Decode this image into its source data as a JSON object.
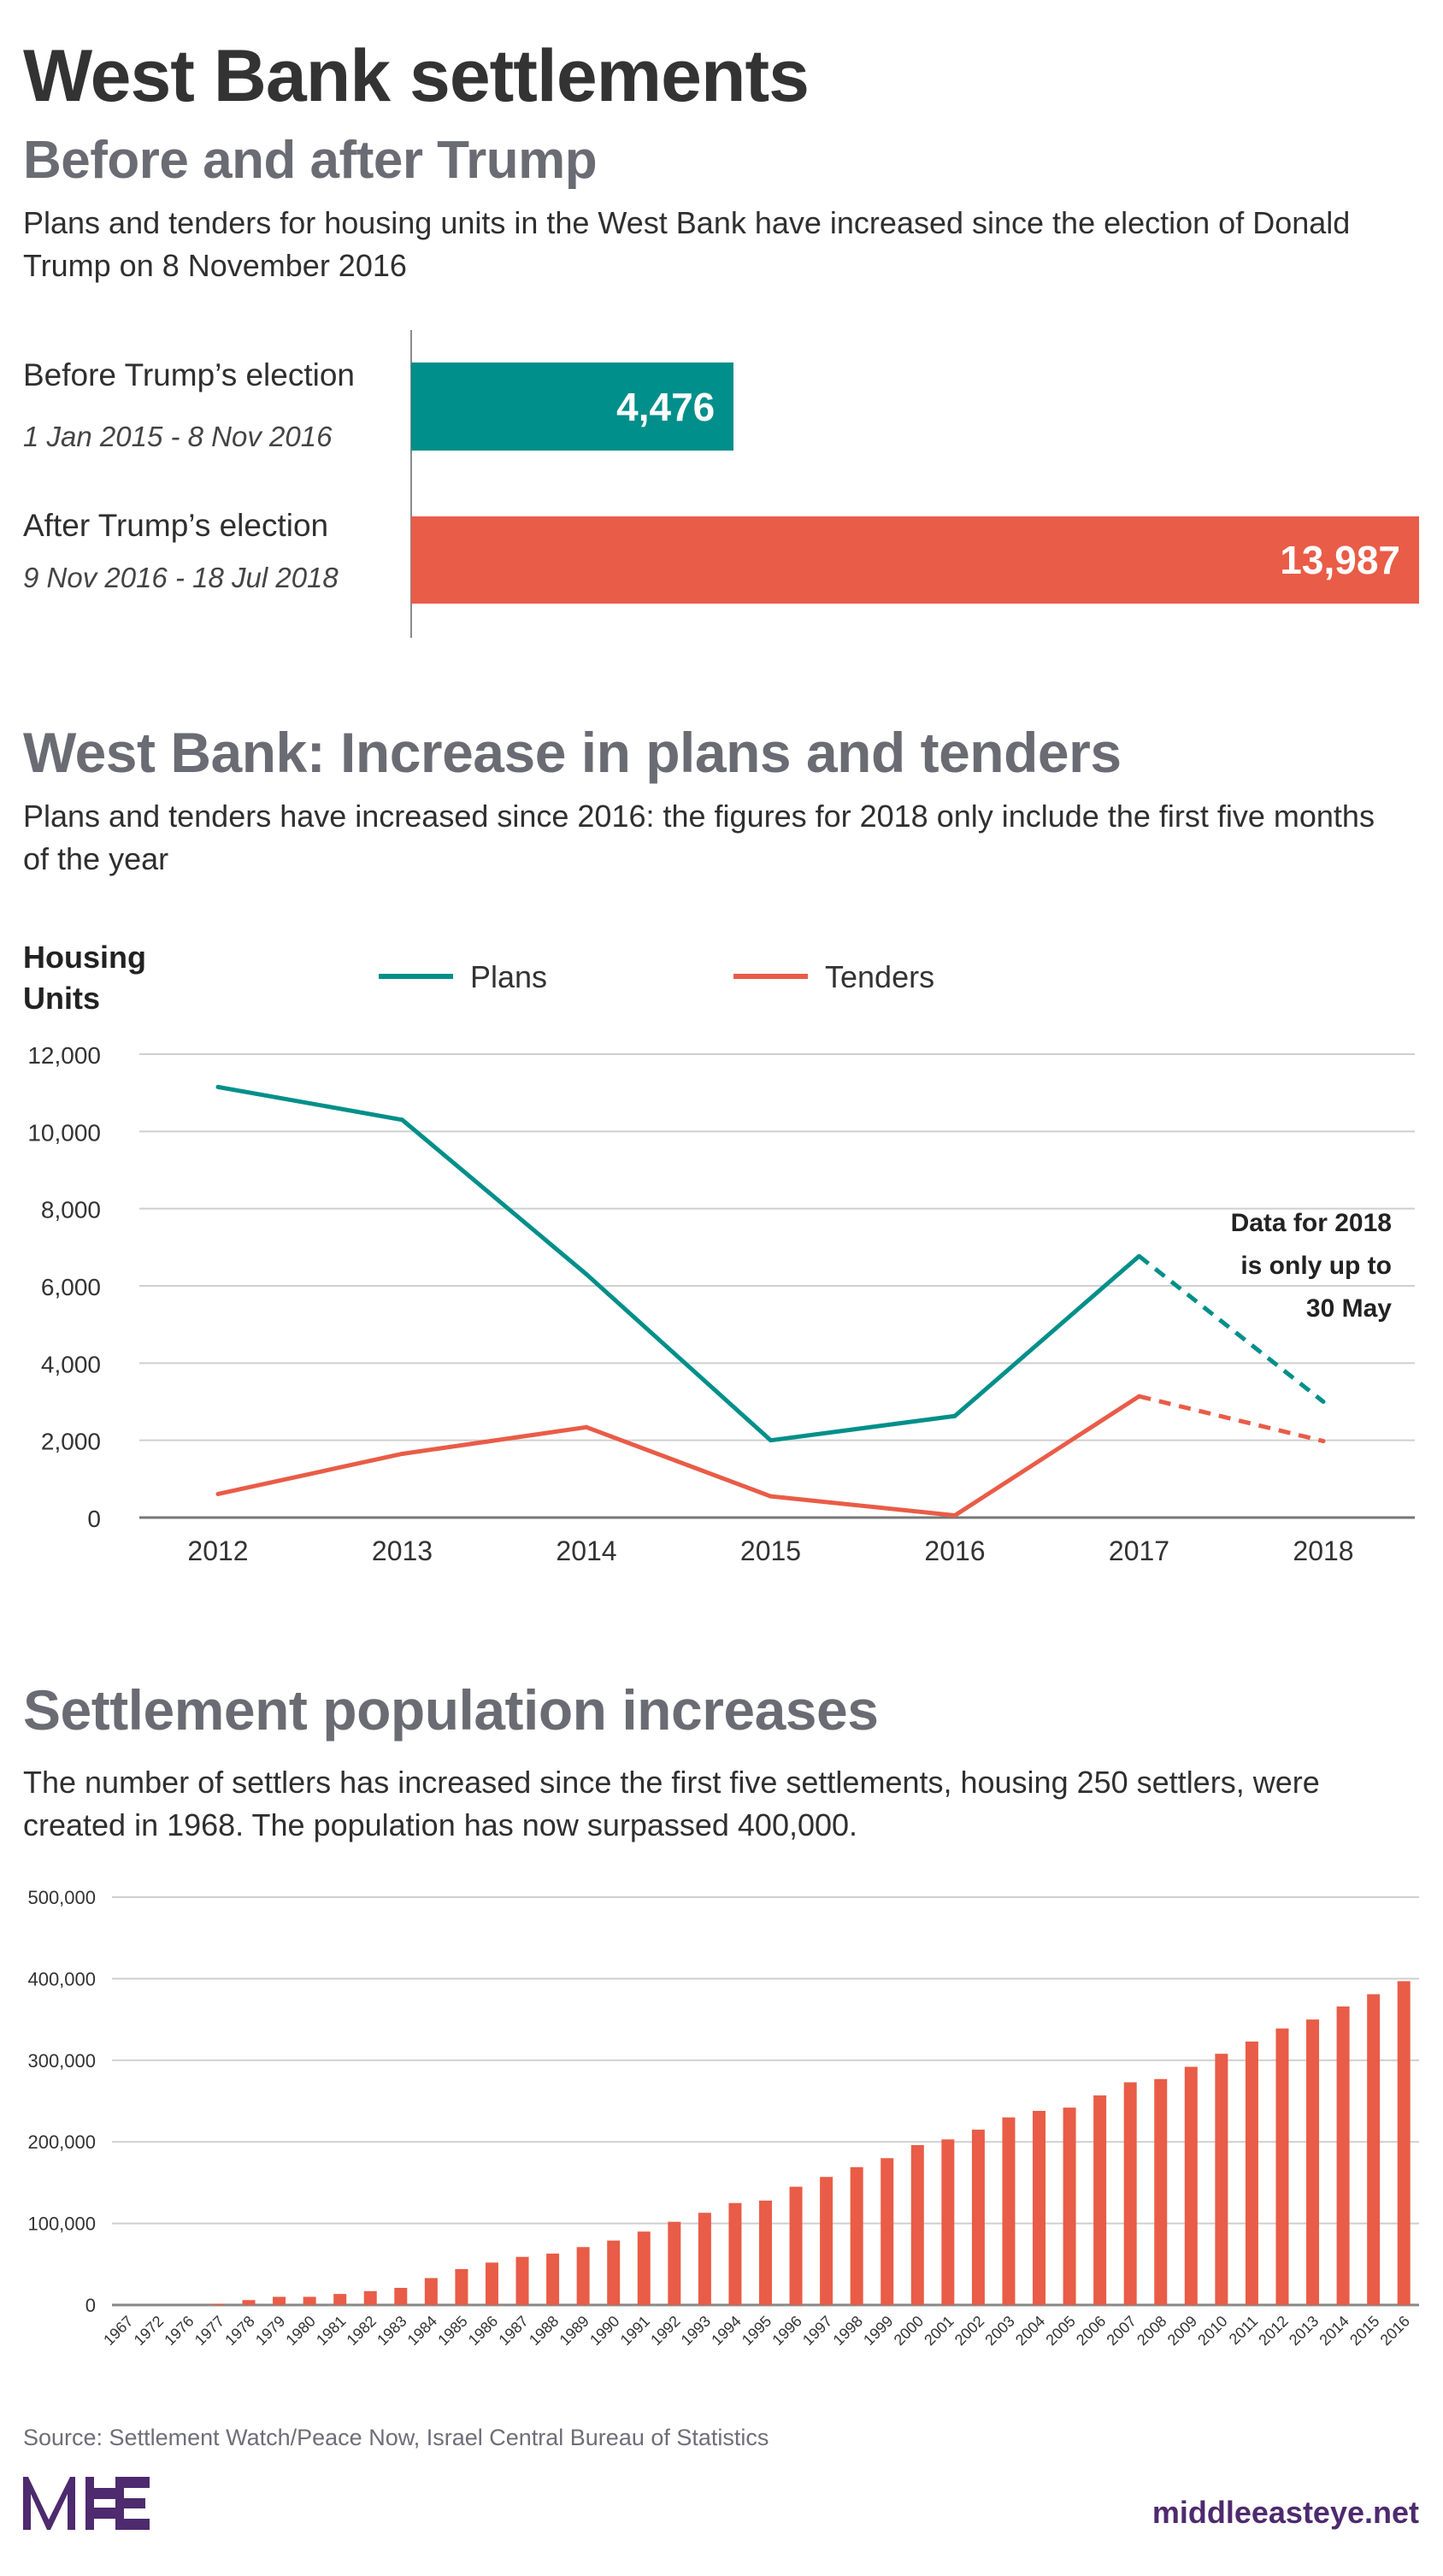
{
  "header": {
    "title": "West Bank settlements",
    "subtitle": "Before and after Trump",
    "description": "Plans and tenders for housing units in the West Bank have increased since the election of Donald Trump on 8 November 2016"
  },
  "comparison": {
    "items": [
      {
        "label": "Before Trump’s election",
        "period": "1 Jan 2015 - 8 Nov 2016",
        "value": 4476,
        "value_label": "4,476",
        "color": "#008f8a"
      },
      {
        "label": "After Trump’s election",
        "period": "9 Nov 2016 - 18 Jul 2018",
        "value": 13987,
        "value_label": "13,987",
        "color": "#e95c47"
      }
    ]
  },
  "section2": {
    "title": "West Bank: Increase in plans and tenders",
    "description": "Plans and tenders have increased since 2016: the figures for 2018 only include the first five months of the year"
  },
  "section3": {
    "title": "Settlement population increases",
    "description": "The number of settlers has increased since the first five settlements, housing 250 settlers, were created in 1968. The population has now surpassed 400,000."
  },
  "chart_data": [
    {
      "type": "line",
      "ylabel_line1": "Housing",
      "ylabel_line2": "Units",
      "categories": [
        "2012",
        "2013",
        "2014",
        "2015",
        "2016",
        "2017",
        "2018"
      ],
      "ylim": [
        0,
        12000
      ],
      "yticks": [
        "0",
        "2,000",
        "4,000",
        "6,000",
        "8,000",
        "10,000",
        "12,000"
      ],
      "grid": true,
      "legend": "top",
      "annotation": [
        "Data for 2018",
        "is only up to",
        "30 May"
      ],
      "partial_last_point": true,
      "series": [
        {
          "name": "Plans",
          "color": "#008f8a",
          "values": [
            11150,
            10300,
            6300,
            2000,
            2630,
            6770,
            3000
          ]
        },
        {
          "name": "Tenders",
          "color": "#e95c47",
          "values": [
            610,
            1650,
            2340,
            550,
            55,
            3140,
            1980
          ]
        }
      ]
    },
    {
      "type": "bar",
      "categories": [
        "1967",
        "1972",
        "1976",
        "1977",
        "1978",
        "1979",
        "1980",
        "1981",
        "1982",
        "1983",
        "1984",
        "1985",
        "1986",
        "1987",
        "1988",
        "1989",
        "1990",
        "1991",
        "1992",
        "1993",
        "1994",
        "1995",
        "1996",
        "1997",
        "1998",
        "1999",
        "2000",
        "2001",
        "2002",
        "2003",
        "2004",
        "2005",
        "2006",
        "2007",
        "2008",
        "2009",
        "2010",
        "2011",
        "2012",
        "2013",
        "2014",
        "2015",
        "2016"
      ],
      "values": [
        0,
        0,
        0,
        1500,
        6000,
        10000,
        10000,
        13500,
        17000,
        21000,
        33000,
        44000,
        52000,
        59000,
        63000,
        71000,
        79000,
        90000,
        102000,
        113000,
        125000,
        128000,
        145000,
        157000,
        169000,
        180000,
        196000,
        203000,
        215000,
        230000,
        238000,
        242000,
        257000,
        273000,
        277000,
        292000,
        308000,
        323000,
        339000,
        350000,
        366000,
        381000,
        397000
      ],
      "ylim": [
        0,
        500000
      ],
      "yticks": [
        "0",
        "100,000",
        "200,000",
        "300,000",
        "400,000",
        "500,000"
      ],
      "grid": true,
      "color": "#e95c47"
    }
  ],
  "footer": {
    "source": "Source: Settlement Watch/Peace Now, Israel Central Bureau of Statistics",
    "logo_text": "MEE",
    "site": "middleeasteye.net",
    "brand_color": "#4e2a6e"
  }
}
